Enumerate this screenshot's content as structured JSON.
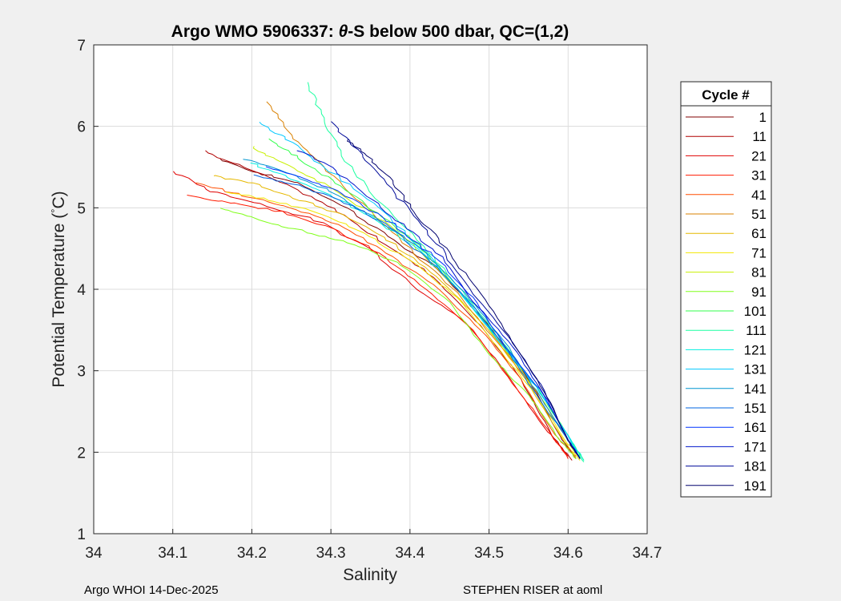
{
  "chart_data": {
    "type": "line",
    "title_prefix": "Argo WMO 5906337: ",
    "title_symbol": "θ",
    "title_suffix": "-S below 500 dbar,  QC=(1,2)",
    "xlabel": "Salinity",
    "ylabel_main": "Potential Temperature (",
    "ylabel_degree": "°",
    "ylabel_unit": "C)",
    "xlim": [
      34,
      34.7
    ],
    "ylim": [
      1,
      7
    ],
    "xticks": [
      "34",
      "34.1",
      "34.2",
      "34.3",
      "34.4",
      "34.5",
      "34.6",
      "34.7"
    ],
    "yticks": [
      "1",
      "2",
      "3",
      "4",
      "5",
      "6",
      "7"
    ],
    "grid": true,
    "legend_title": "Cycle #",
    "legend_position": "right",
    "legend": [
      {
        "name": "1",
        "color": "#800000"
      },
      {
        "name": "11",
        "color": "#b00000"
      },
      {
        "name": "21",
        "color": "#e00000"
      },
      {
        "name": "31",
        "color": "#ff1a00"
      },
      {
        "name": "41",
        "color": "#ff4d00"
      },
      {
        "name": "51",
        "color": "#d98000"
      },
      {
        "name": "61",
        "color": "#e6b800"
      },
      {
        "name": "71",
        "color": "#f2e600"
      },
      {
        "name": "81",
        "color": "#c8f000"
      },
      {
        "name": "91",
        "color": "#80ff1a"
      },
      {
        "name": "101",
        "color": "#33ff4d"
      },
      {
        "name": "111",
        "color": "#1affa0"
      },
      {
        "name": "121",
        "color": "#00f0e0"
      },
      {
        "name": "131",
        "color": "#00c8ff"
      },
      {
        "name": "141",
        "color": "#0096d0"
      },
      {
        "name": "151",
        "color": "#0064e0"
      },
      {
        "name": "161",
        "color": "#0033ff"
      },
      {
        "name": "171",
        "color": "#0014cc"
      },
      {
        "name": "181",
        "color": "#000a99"
      },
      {
        "name": "191",
        "color": "#00006e"
      }
    ],
    "profiles": [
      {
        "cycle": "1",
        "color": "#800000",
        "points": [
          [
            34.16,
            5.6
          ],
          [
            34.2,
            5.45
          ],
          [
            34.26,
            5.3
          ],
          [
            34.32,
            5.0
          ],
          [
            34.38,
            4.6
          ],
          [
            34.44,
            4.2
          ],
          [
            34.5,
            3.55
          ],
          [
            34.55,
            2.9
          ],
          [
            34.59,
            2.2
          ],
          [
            34.61,
            1.92
          ]
        ]
      },
      {
        "cycle": "11",
        "color": "#b00000",
        "points": [
          [
            34.14,
            5.7
          ],
          [
            34.19,
            5.5
          ],
          [
            34.25,
            5.25
          ],
          [
            34.31,
            4.95
          ],
          [
            34.37,
            4.55
          ],
          [
            34.43,
            4.15
          ],
          [
            34.49,
            3.55
          ],
          [
            34.54,
            2.9
          ],
          [
            34.58,
            2.2
          ],
          [
            34.605,
            1.9
          ]
        ]
      },
      {
        "cycle": "21",
        "color": "#e00000",
        "points": [
          [
            34.1,
            5.45
          ],
          [
            34.15,
            5.2
          ],
          [
            34.21,
            5.05
          ],
          [
            34.28,
            4.85
          ],
          [
            34.35,
            4.5
          ],
          [
            34.41,
            4.0
          ],
          [
            34.47,
            3.6
          ],
          [
            34.52,
            3.0
          ],
          [
            34.57,
            2.3
          ],
          [
            34.6,
            1.95
          ]
        ]
      },
      {
        "cycle": "31",
        "color": "#ff1a00",
        "points": [
          [
            34.12,
            5.15
          ],
          [
            34.18,
            5.05
          ],
          [
            34.24,
            4.95
          ],
          [
            34.3,
            4.75
          ],
          [
            34.36,
            4.45
          ],
          [
            34.42,
            4.0
          ],
          [
            34.48,
            3.5
          ],
          [
            34.53,
            2.85
          ],
          [
            34.58,
            2.2
          ],
          [
            34.6,
            1.92
          ]
        ]
      },
      {
        "cycle": "41",
        "color": "#ff4d00",
        "points": [
          [
            34.13,
            5.3
          ],
          [
            34.19,
            5.15
          ],
          [
            34.25,
            5.0
          ],
          [
            34.31,
            4.8
          ],
          [
            34.37,
            4.45
          ],
          [
            34.43,
            4.05
          ],
          [
            34.49,
            3.5
          ],
          [
            34.54,
            2.9
          ],
          [
            34.58,
            2.25
          ],
          [
            34.61,
            1.95
          ]
        ]
      },
      {
        "cycle": "51",
        "color": "#d98000",
        "points": [
          [
            34.22,
            6.3
          ],
          [
            34.25,
            5.9
          ],
          [
            34.29,
            5.5
          ],
          [
            34.34,
            5.05
          ],
          [
            34.4,
            4.5
          ],
          [
            34.46,
            3.95
          ],
          [
            34.51,
            3.35
          ],
          [
            34.56,
            2.75
          ],
          [
            34.6,
            2.15
          ],
          [
            34.615,
            1.92
          ]
        ]
      },
      {
        "cycle": "61",
        "color": "#e6b800",
        "points": [
          [
            34.15,
            5.4
          ],
          [
            34.2,
            5.3
          ],
          [
            34.26,
            5.1
          ],
          [
            34.32,
            4.9
          ],
          [
            34.38,
            4.55
          ],
          [
            34.44,
            4.1
          ],
          [
            34.5,
            3.5
          ],
          [
            34.55,
            2.85
          ],
          [
            34.59,
            2.2
          ],
          [
            34.61,
            1.93
          ]
        ]
      },
      {
        "cycle": "71",
        "color": "#f2e600",
        "points": [
          [
            34.17,
            5.2
          ],
          [
            34.22,
            5.1
          ],
          [
            34.28,
            4.95
          ],
          [
            34.34,
            4.7
          ],
          [
            34.4,
            4.35
          ],
          [
            34.46,
            3.9
          ],
          [
            34.51,
            3.3
          ],
          [
            34.56,
            2.7
          ],
          [
            34.6,
            2.1
          ],
          [
            34.615,
            1.9
          ]
        ]
      },
      {
        "cycle": "81",
        "color": "#c8f000",
        "points": [
          [
            34.2,
            5.75
          ],
          [
            34.24,
            5.55
          ],
          [
            34.29,
            5.3
          ],
          [
            34.35,
            4.95
          ],
          [
            34.41,
            4.5
          ],
          [
            34.46,
            4.0
          ],
          [
            34.51,
            3.4
          ],
          [
            34.56,
            2.75
          ],
          [
            34.6,
            2.15
          ],
          [
            34.615,
            1.92
          ]
        ]
      },
      {
        "cycle": "91",
        "color": "#80ff1a",
        "points": [
          [
            34.16,
            5.0
          ],
          [
            34.21,
            4.85
          ],
          [
            34.27,
            4.7
          ],
          [
            34.33,
            4.55
          ],
          [
            34.39,
            4.3
          ],
          [
            34.45,
            3.85
          ],
          [
            34.5,
            3.2
          ],
          [
            34.55,
            2.7
          ],
          [
            34.59,
            2.15
          ],
          [
            34.61,
            1.92
          ]
        ]
      },
      {
        "cycle": "101",
        "color": "#33ff4d",
        "points": [
          [
            34.22,
            5.85
          ],
          [
            34.26,
            5.6
          ],
          [
            34.3,
            5.35
          ],
          [
            34.35,
            5.0
          ],
          [
            34.41,
            4.55
          ],
          [
            34.46,
            4.0
          ],
          [
            34.51,
            3.4
          ],
          [
            34.56,
            2.8
          ],
          [
            34.6,
            2.2
          ],
          [
            34.62,
            1.9
          ]
        ]
      },
      {
        "cycle": "111",
        "color": "#1affa0",
        "points": [
          [
            34.27,
            6.55
          ],
          [
            34.29,
            6.1
          ],
          [
            34.31,
            5.7
          ],
          [
            34.35,
            5.2
          ],
          [
            34.41,
            4.6
          ],
          [
            34.46,
            4.05
          ],
          [
            34.51,
            3.45
          ],
          [
            34.56,
            2.8
          ],
          [
            34.6,
            2.2
          ],
          [
            34.62,
            1.88
          ]
        ]
      },
      {
        "cycle": "121",
        "color": "#00f0e0",
        "points": [
          [
            34.2,
            5.55
          ],
          [
            34.24,
            5.4
          ],
          [
            34.29,
            5.2
          ],
          [
            34.35,
            4.9
          ],
          [
            34.41,
            4.5
          ],
          [
            34.46,
            4.0
          ],
          [
            34.51,
            3.4
          ],
          [
            34.56,
            2.8
          ],
          [
            34.6,
            2.2
          ],
          [
            34.62,
            1.9
          ]
        ]
      },
      {
        "cycle": "131",
        "color": "#00c8ff",
        "points": [
          [
            34.21,
            6.05
          ],
          [
            34.25,
            5.8
          ],
          [
            34.3,
            5.45
          ],
          [
            34.36,
            5.0
          ],
          [
            34.41,
            4.55
          ],
          [
            34.46,
            4.0
          ],
          [
            34.51,
            3.4
          ],
          [
            34.56,
            2.8
          ],
          [
            34.6,
            2.2
          ],
          [
            34.615,
            1.92
          ]
        ]
      },
      {
        "cycle": "141",
        "color": "#0096d0",
        "points": [
          [
            34.19,
            5.6
          ],
          [
            34.24,
            5.45
          ],
          [
            34.3,
            5.2
          ],
          [
            34.36,
            4.85
          ],
          [
            34.42,
            4.45
          ],
          [
            34.47,
            3.95
          ],
          [
            34.52,
            3.35
          ],
          [
            34.56,
            2.75
          ],
          [
            34.6,
            2.15
          ],
          [
            34.615,
            1.92
          ]
        ]
      },
      {
        "cycle": "151",
        "color": "#0064e0",
        "points": [
          [
            34.2,
            5.4
          ],
          [
            34.25,
            5.3
          ],
          [
            34.31,
            5.1
          ],
          [
            34.37,
            4.8
          ],
          [
            34.42,
            4.4
          ],
          [
            34.47,
            3.9
          ],
          [
            34.52,
            3.3
          ],
          [
            34.56,
            2.7
          ],
          [
            34.6,
            2.15
          ],
          [
            34.615,
            1.92
          ]
        ]
      },
      {
        "cycle": "161",
        "color": "#0033ff",
        "points": [
          [
            34.22,
            5.5
          ],
          [
            34.27,
            5.35
          ],
          [
            34.32,
            5.15
          ],
          [
            34.38,
            4.8
          ],
          [
            34.43,
            4.4
          ],
          [
            34.48,
            3.9
          ],
          [
            34.52,
            3.3
          ],
          [
            34.57,
            2.7
          ],
          [
            34.6,
            2.15
          ],
          [
            34.615,
            1.93
          ]
        ]
      },
      {
        "cycle": "171",
        "color": "#0014cc",
        "points": [
          [
            34.26,
            5.7
          ],
          [
            34.3,
            5.5
          ],
          [
            34.34,
            5.2
          ],
          [
            34.39,
            4.8
          ],
          [
            34.44,
            4.4
          ],
          [
            34.48,
            3.85
          ],
          [
            34.53,
            3.3
          ],
          [
            34.57,
            2.7
          ],
          [
            34.6,
            2.15
          ],
          [
            34.615,
            1.92
          ]
        ]
      },
      {
        "cycle": "181",
        "color": "#000a99",
        "points": [
          [
            34.3,
            6.05
          ],
          [
            34.33,
            5.75
          ],
          [
            34.36,
            5.4
          ],
          [
            34.4,
            4.95
          ],
          [
            34.44,
            4.5
          ],
          [
            34.48,
            3.95
          ],
          [
            34.53,
            3.35
          ],
          [
            34.57,
            2.75
          ],
          [
            34.6,
            2.15
          ],
          [
            34.615,
            1.92
          ]
        ]
      },
      {
        "cycle": "191",
        "color": "#00006e",
        "points": [
          [
            34.32,
            5.85
          ],
          [
            34.35,
            5.6
          ],
          [
            34.38,
            5.3
          ],
          [
            34.41,
            4.9
          ],
          [
            34.45,
            4.45
          ],
          [
            34.49,
            3.95
          ],
          [
            34.53,
            3.35
          ],
          [
            34.57,
            2.75
          ],
          [
            34.6,
            2.15
          ],
          [
            34.615,
            1.92
          ]
        ]
      }
    ]
  },
  "footer": {
    "left": "Argo WHOI 14-Dec-2025",
    "right": "STEPHEN RISER at aoml"
  }
}
